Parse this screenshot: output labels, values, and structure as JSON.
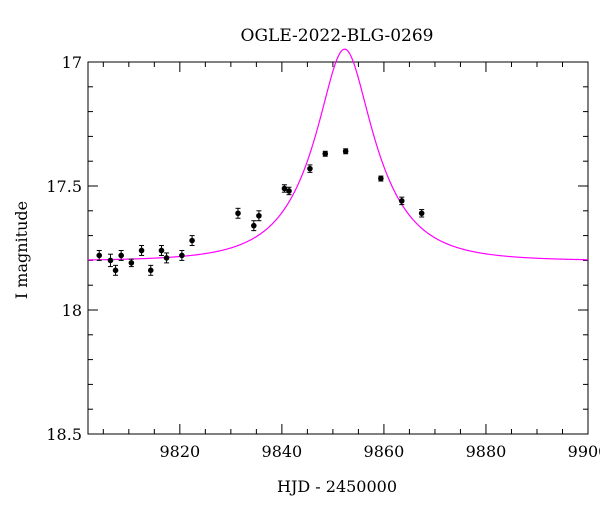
{
  "chart_data": {
    "type": "scatter",
    "title": "OGLE-2022-BLG-0269",
    "xlabel": "HJD - 2450000",
    "ylabel": "I magnitude",
    "xlim": [
      9802,
      9900
    ],
    "ylim": [
      17.0,
      18.5
    ],
    "y_inverted": true,
    "x_major_ticks": [
      9820,
      9840,
      9860,
      9880,
      9900
    ],
    "x_tick_labels": [
      "9820",
      "9840",
      "9860",
      "9880",
      "9900"
    ],
    "y_major_ticks": [
      17.0,
      17.5,
      18.0,
      18.5
    ],
    "y_tick_labels": [
      "17",
      "17.5",
      "18",
      "18.5"
    ],
    "x_minor_step": 5,
    "y_minor_step": 0.1,
    "grid": false,
    "colors": {
      "points": "#000000",
      "model": "#ff00ff"
    },
    "series": [
      {
        "kind": "points_with_errorbars",
        "points": [
          {
            "x": 9804.2,
            "y": 17.78,
            "err": 0.02
          },
          {
            "x": 9806.4,
            "y": 17.8,
            "err": 0.025
          },
          {
            "x": 9807.4,
            "y": 17.84,
            "err": 0.02
          },
          {
            "x": 9808.5,
            "y": 17.78,
            "err": 0.02
          },
          {
            "x": 9810.5,
            "y": 17.81,
            "err": 0.015
          },
          {
            "x": 9812.5,
            "y": 17.76,
            "err": 0.02
          },
          {
            "x": 9814.3,
            "y": 17.84,
            "err": 0.02
          },
          {
            "x": 9816.4,
            "y": 17.76,
            "err": 0.02
          },
          {
            "x": 9817.4,
            "y": 17.79,
            "err": 0.02
          },
          {
            "x": 9820.4,
            "y": 17.78,
            "err": 0.02
          },
          {
            "x": 9822.4,
            "y": 17.72,
            "err": 0.02
          },
          {
            "x": 9831.4,
            "y": 17.61,
            "err": 0.02
          },
          {
            "x": 9834.5,
            "y": 17.66,
            "err": 0.02
          },
          {
            "x": 9835.5,
            "y": 17.62,
            "err": 0.02
          },
          {
            "x": 9840.5,
            "y": 17.51,
            "err": 0.015
          },
          {
            "x": 9841.4,
            "y": 17.52,
            "err": 0.015
          },
          {
            "x": 9845.5,
            "y": 17.43,
            "err": 0.015
          },
          {
            "x": 9848.5,
            "y": 17.37,
            "err": 0.01
          },
          {
            "x": 9852.5,
            "y": 17.36,
            "err": 0.01
          },
          {
            "x": 9859.4,
            "y": 17.47,
            "err": 0.01
          },
          {
            "x": 9863.5,
            "y": 17.56,
            "err": 0.015
          },
          {
            "x": 9867.4,
            "y": 17.61,
            "err": 0.015
          }
        ]
      },
      {
        "kind": "model_curve",
        "curve_type": "pspl",
        "t0": 9852.3,
        "tE": 12.0,
        "u0": 0.39,
        "fs": 0.7,
        "I_base": 17.802
      }
    ]
  }
}
